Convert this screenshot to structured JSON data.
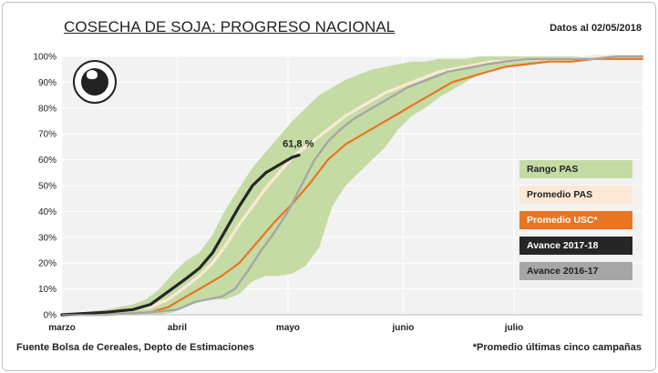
{
  "header": {
    "title": "COSECHA DE SOJA: PROGRESO NACIONAL",
    "date": "Datos al 02/05/2018"
  },
  "footer": {
    "source": "Fuente Bolsa de Cereales, Depto de Estimaciones",
    "note": "*Promedio últimas cinco campañas"
  },
  "annotation": "61,8 %",
  "colors": {
    "range": "#c5dba4",
    "promedio_pas": "#fce8d4",
    "promedio_usc": "#e97421",
    "avance_2017_18": "#262626",
    "avance_2016_17": "#a6a6a6",
    "plot_bg": "#f2f2f2",
    "grid": "#ffffff"
  },
  "legend": [
    {
      "label": "Rango PAS",
      "bg": "#c5dba4",
      "fg": "#222222"
    },
    {
      "label": "Promedio PAS",
      "bg": "#fce8d4",
      "fg": "#222222"
    },
    {
      "label": "Promedio  USC*",
      "bg": "#e97421",
      "fg": "#ffffff"
    },
    {
      "label": "Avance 2017-18",
      "bg": "#262626",
      "fg": "#ffffff"
    },
    {
      "label": "Avance 2016-17",
      "bg": "#a6a6a6",
      "fg": "#222222"
    }
  ],
  "chart_data": {
    "type": "area",
    "title": "COSECHA DE SOJA: PROGRESO NACIONAL",
    "xlabel": "",
    "ylabel": "",
    "x_unit": "days from 1 March",
    "xlim": [
      0,
      131
    ],
    "ylim": [
      0,
      100
    ],
    "y_ticks": [
      "0%",
      "10%",
      "20%",
      "30%",
      "40%",
      "50%",
      "60%",
      "70%",
      "80%",
      "90%",
      "100%"
    ],
    "x_ticks": [
      {
        "label": "marzo",
        "x": 0
      },
      {
        "label": "abril",
        "x": 26
      },
      {
        "label": "mayo",
        "x": 51
      },
      {
        "label": "junio",
        "x": 77
      },
      {
        "label": "julio",
        "x": 102
      }
    ],
    "grid": true,
    "legend_position": "right",
    "range": {
      "name": "Rango PAS",
      "x": [
        0,
        10,
        16,
        19,
        22,
        25,
        28,
        31,
        34,
        37,
        40,
        43,
        46,
        49,
        52,
        55,
        58,
        61,
        64,
        67,
        70,
        73,
        76,
        79,
        82,
        85,
        88,
        91,
        94,
        97,
        100,
        105,
        110,
        115,
        120,
        125,
        131
      ],
      "upper": [
        0,
        2,
        4,
        6,
        10,
        16,
        21,
        24,
        31,
        41,
        49,
        57,
        63,
        69,
        75,
        80,
        85,
        88,
        91,
        93,
        95,
        96,
        97,
        98,
        98,
        99,
        99,
        99,
        100,
        100,
        100,
        100,
        100,
        100,
        100,
        100,
        100
      ],
      "lower": [
        0,
        0,
        0,
        0,
        0,
        1,
        3,
        5,
        6,
        6,
        8,
        13,
        15,
        15,
        16,
        19,
        26,
        42,
        50,
        55,
        60,
        65,
        72,
        77,
        80,
        84,
        87,
        90,
        93,
        95,
        96,
        97,
        98,
        98,
        99,
        99,
        99
      ]
    },
    "series": [
      {
        "name": "Promedio PAS",
        "x": [
          0,
          10,
          16,
          20,
          24,
          28,
          31,
          34,
          37,
          40,
          43,
          46,
          49,
          52,
          55,
          58,
          61,
          64,
          67,
          70,
          73,
          76,
          79,
          82,
          85,
          88,
          91,
          94,
          97,
          100,
          105,
          110,
          115,
          120,
          125,
          131
        ],
        "y": [
          0,
          1,
          2,
          3,
          6,
          11,
          15,
          20,
          27,
          35,
          42,
          49,
          55,
          61,
          65,
          69,
          73,
          77,
          80,
          83,
          86,
          88,
          90,
          92,
          94,
          95,
          96,
          97,
          98,
          98,
          99,
          99,
          99,
          100,
          100,
          100
        ]
      },
      {
        "name": "Promedio  USC*",
        "x": [
          0,
          10,
          20,
          24,
          28,
          32,
          36,
          40,
          44,
          48,
          52,
          56,
          60,
          64,
          68,
          72,
          76,
          80,
          84,
          88,
          92,
          96,
          100,
          105,
          110,
          115,
          120,
          125,
          131
        ],
        "y": [
          0,
          0,
          1,
          3,
          7,
          11,
          15,
          20,
          28,
          36,
          43,
          51,
          60,
          66,
          70,
          74,
          78,
          82,
          86,
          90,
          92,
          94,
          96,
          97,
          98,
          98,
          99,
          99,
          99
        ]
      },
      {
        "name": "Avance 2017-18",
        "x": [
          0,
          10,
          16,
          20,
          24,
          28,
          31,
          34,
          37,
          40,
          43,
          46,
          49,
          52,
          53.5
        ],
        "y": [
          0,
          1,
          2,
          4,
          9,
          14,
          18,
          24,
          33,
          42,
          50,
          55,
          58,
          61,
          61.8
        ]
      },
      {
        "name": "Avance 2016-17",
        "x": [
          0,
          10,
          20,
          26,
          30,
          33,
          36,
          39,
          42,
          45,
          48,
          51,
          54,
          57,
          60,
          63,
          66,
          69,
          72,
          75,
          78,
          81,
          84,
          87,
          90,
          93,
          96,
          100,
          105,
          110,
          115,
          120,
          125,
          131
        ],
        "y": [
          0,
          0,
          1,
          2,
          5,
          6,
          7,
          10,
          17,
          25,
          32,
          40,
          50,
          60,
          67,
          72,
          76,
          79,
          82,
          85,
          88,
          90,
          92,
          94,
          95,
          96,
          97,
          98,
          99,
          99,
          99,
          99,
          100,
          100
        ]
      }
    ],
    "annotations": [
      {
        "text": "61,8 %",
        "x": 53.5,
        "y": 61.8
      }
    ]
  }
}
